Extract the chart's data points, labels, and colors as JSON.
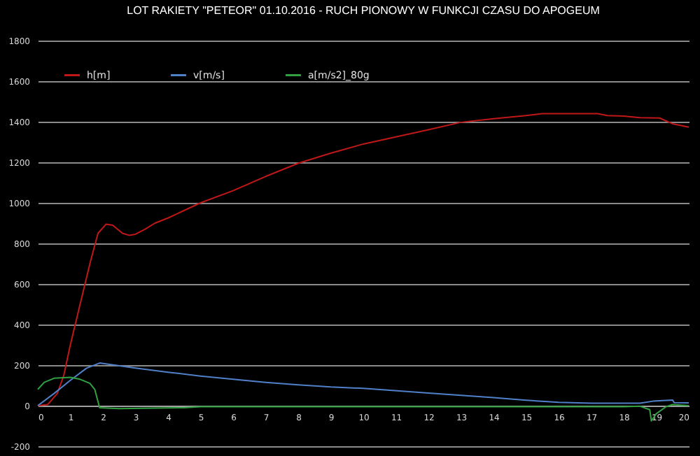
{
  "chart_data": {
    "type": "line",
    "title": "LOT RAKIETY \"PETEOR\" 01.10.2016 -  RUCH PIONOWY W FUNKCJI CZASU DO APOGEUM",
    "xlim": [
      0,
      20
    ],
    "xticks": [
      0,
      1,
      2,
      3,
      4,
      5,
      6,
      7,
      8,
      9,
      10,
      11,
      12,
      13,
      14,
      15,
      16,
      17,
      18,
      19,
      20
    ],
    "ylim": [
      -200,
      1800
    ],
    "yticks": [
      -200,
      0,
      200,
      400,
      600,
      800,
      1000,
      1200,
      1400,
      1600,
      1800
    ],
    "grid": "y",
    "legend": "top left",
    "marker": "none",
    "line_style": "solid",
    "series": [
      {
        "name": "h[m]",
        "color": "#c01818",
        "x": [
          0,
          0.3,
          0.6,
          0.8,
          1,
          1.3,
          1.6,
          1.85,
          2.1,
          2.3,
          2.6,
          2.8,
          3,
          3.3,
          3.6,
          4,
          5,
          6,
          7,
          8,
          9,
          10,
          11,
          12,
          13,
          14,
          15,
          15.5,
          17.2,
          17.5,
          18,
          18.5,
          19.1,
          19.5,
          20
        ],
        "values": [
          0,
          5,
          60,
          150,
          300,
          500,
          700,
          850,
          895,
          890,
          850,
          840,
          845,
          870,
          900,
          925,
          1000,
          1060,
          1130,
          1195,
          1245,
          1290,
          1325,
          1360,
          1397,
          1415,
          1430,
          1440,
          1440,
          1430,
          1428,
          1420,
          1418,
          1390,
          1373
        ]
      },
      {
        "name": "v[m/s]",
        "color": "#5080c8",
        "x": [
          0,
          0.5,
          1,
          1.5,
          1.9,
          3,
          4,
          5,
          6,
          7,
          8,
          9,
          10,
          12,
          14,
          15,
          16,
          17,
          18.5,
          18.9,
          19.5,
          19.55,
          20
        ],
        "values": [
          0,
          60,
          125,
          185,
          210,
          185,
          165,
          146,
          130,
          115,
          103,
          92,
          85,
          62,
          40,
          27,
          16,
          12,
          12,
          22,
          28,
          15,
          14
        ]
      },
      {
        "name": "a[m/s2]_80g",
        "color": "#30a040",
        "x": [
          0,
          0.2,
          0.5,
          1,
          1.3,
          1.6,
          1.75,
          1.9,
          2.5,
          4.5,
          5,
          18,
          18.5,
          18.8,
          18.85,
          19,
          19.3,
          19.5,
          20
        ],
        "values": [
          80,
          115,
          135,
          140,
          130,
          110,
          80,
          -10,
          -15,
          -10,
          -5,
          -5,
          -3,
          -20,
          -75,
          -40,
          -5,
          5,
          0
        ]
      }
    ]
  }
}
